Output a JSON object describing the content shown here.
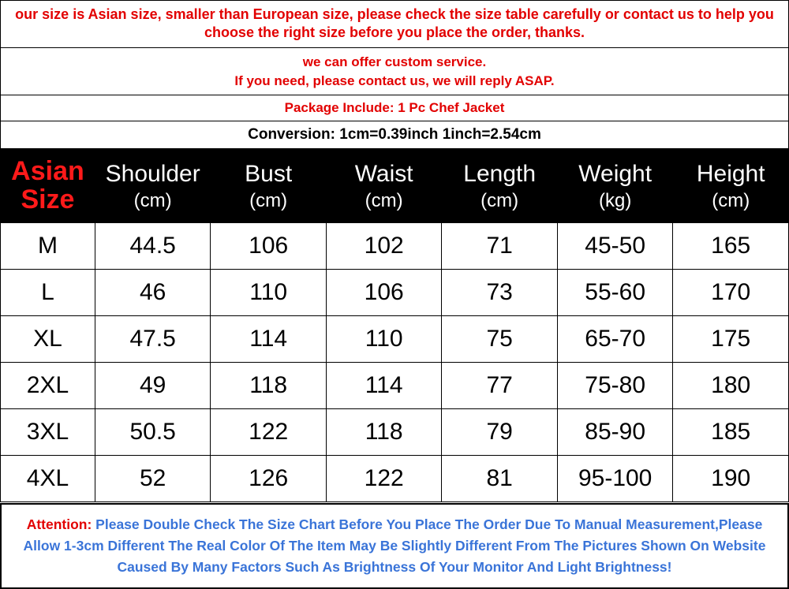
{
  "notices": {
    "line1": "our size is Asian size, smaller than European size, please check the size table carefully or contact us to help you choose the right size before you place the order, thanks.",
    "line2a": "we can offer custom service.",
    "line2b": "If you need, please contact us, we will reply ASAP.",
    "line3": "Package Include: 1 Pc Chef Jacket",
    "line4": "Conversion: 1cm=0.39inch  1inch=2.54cm"
  },
  "table": {
    "header": {
      "size_l1": "Asian",
      "size_l2": "Size",
      "cols": [
        {
          "main": "Shoulder",
          "unit": "(cm)"
        },
        {
          "main": "Bust",
          "unit": "(cm)"
        },
        {
          "main": "Waist",
          "unit": "(cm)"
        },
        {
          "main": "Length",
          "unit": "(cm)"
        },
        {
          "main": "Weight",
          "unit": "(kg)"
        },
        {
          "main": "Height",
          "unit": "(cm)"
        }
      ]
    },
    "rows": [
      {
        "size": "M",
        "shoulder": "44.5",
        "bust": "106",
        "waist": "102",
        "length": "71",
        "weight": "45-50",
        "height": "165"
      },
      {
        "size": "L",
        "shoulder": "46",
        "bust": "110",
        "waist": "106",
        "length": "73",
        "weight": "55-60",
        "height": "170"
      },
      {
        "size": "XL",
        "shoulder": "47.5",
        "bust": "114",
        "waist": "110",
        "length": "75",
        "weight": "65-70",
        "height": "175"
      },
      {
        "size": "2XL",
        "shoulder": "49",
        "bust": "118",
        "waist": "114",
        "length": "77",
        "weight": "75-80",
        "height": "180"
      },
      {
        "size": "3XL",
        "shoulder": "50.5",
        "bust": "122",
        "waist": "118",
        "length": "79",
        "weight": "85-90",
        "height": "185"
      },
      {
        "size": "4XL",
        "shoulder": "52",
        "bust": "126",
        "waist": "122",
        "length": "81",
        "weight": "95-100",
        "height": "190"
      }
    ]
  },
  "attention": {
    "label": "Attention:",
    "body": " Please Double Check The Size Chart Before You Place The Order Due To Manual Measurement,Please Allow 1-3cm Different The Real Color Of The Item May Be Slightly Different From The Pictures Shown On Website Caused By Many Factors Such As Brightness Of Your Monitor And Light Brightness!"
  },
  "colors": {
    "red": "#e20000",
    "black": "#000000",
    "header_bg": "#000000",
    "header_fg": "#ffffff",
    "asian_size_fg": "#ff1a1a",
    "blue": "#3a74d8",
    "border": "#000000",
    "bg": "#ffffff"
  }
}
